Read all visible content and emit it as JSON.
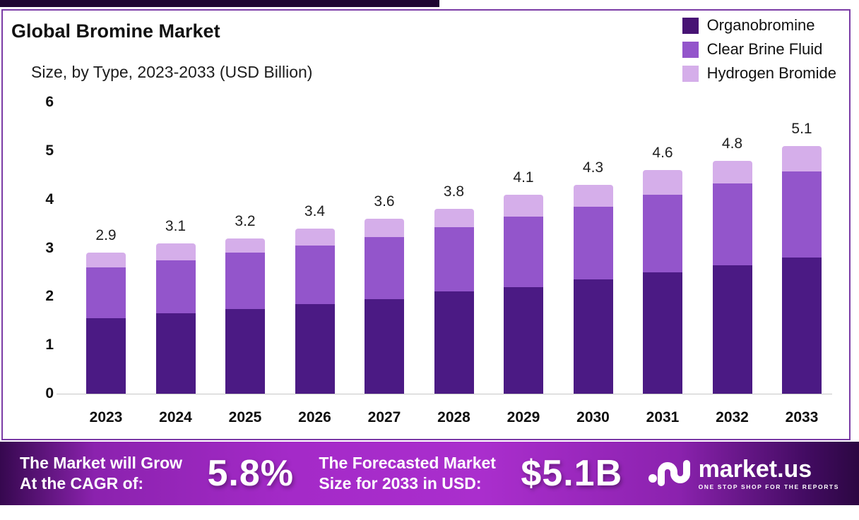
{
  "title": "Global Bromine Market",
  "subtitle": "Size, by Type, 2023-2033 (USD Billion)",
  "legend": [
    {
      "label": "Organobromine",
      "color": "#471374"
    },
    {
      "label": "Clear Brine Fluid",
      "color": "#9355cb"
    },
    {
      "label": "Hydrogen Bromide",
      "color": "#d5aeea"
    }
  ],
  "chart_data": {
    "type": "bar",
    "stacked": true,
    "title": "Global Bromine Market Size, by Type, 2023-2033 (USD Billion)",
    "categories": [
      "2023",
      "2024",
      "2025",
      "2026",
      "2027",
      "2028",
      "2029",
      "2030",
      "2031",
      "2032",
      "2033"
    ],
    "series": [
      {
        "name": "Organobromine",
        "color": "#4b1a84",
        "values": [
          1.55,
          1.65,
          1.75,
          1.85,
          1.95,
          2.1,
          2.2,
          2.35,
          2.5,
          2.65,
          2.8
        ]
      },
      {
        "name": "Clear Brine Fluid",
        "color": "#9355cb",
        "values": [
          1.05,
          1.1,
          1.15,
          1.2,
          1.28,
          1.33,
          1.45,
          1.5,
          1.6,
          1.68,
          1.78
        ]
      },
      {
        "name": "Hydrogen Bromide",
        "color": "#d5aeea",
        "values": [
          0.3,
          0.35,
          0.3,
          0.35,
          0.37,
          0.37,
          0.45,
          0.45,
          0.5,
          0.47,
          0.52
        ]
      }
    ],
    "totals": [
      2.9,
      3.1,
      3.2,
      3.4,
      3.6,
      3.8,
      4.1,
      4.3,
      4.6,
      4.8,
      5.1
    ],
    "xlabel": "",
    "ylabel": "",
    "ylim": [
      0,
      6
    ],
    "yticks": [
      0,
      1,
      2,
      3,
      4,
      5,
      6
    ],
    "grid": false,
    "legend_position": "top-right"
  },
  "banner": {
    "growth_line1": "The Market will Grow",
    "growth_line2": "At the CAGR of:",
    "cagr": "5.8%",
    "forecast_line1": "The Forecasted Market",
    "forecast_line2": "Size for 2033 in USD:",
    "forecast_value": "$5.1B",
    "brand": "market.us",
    "tagline": "ONE STOP SHOP FOR THE REPORTS"
  }
}
